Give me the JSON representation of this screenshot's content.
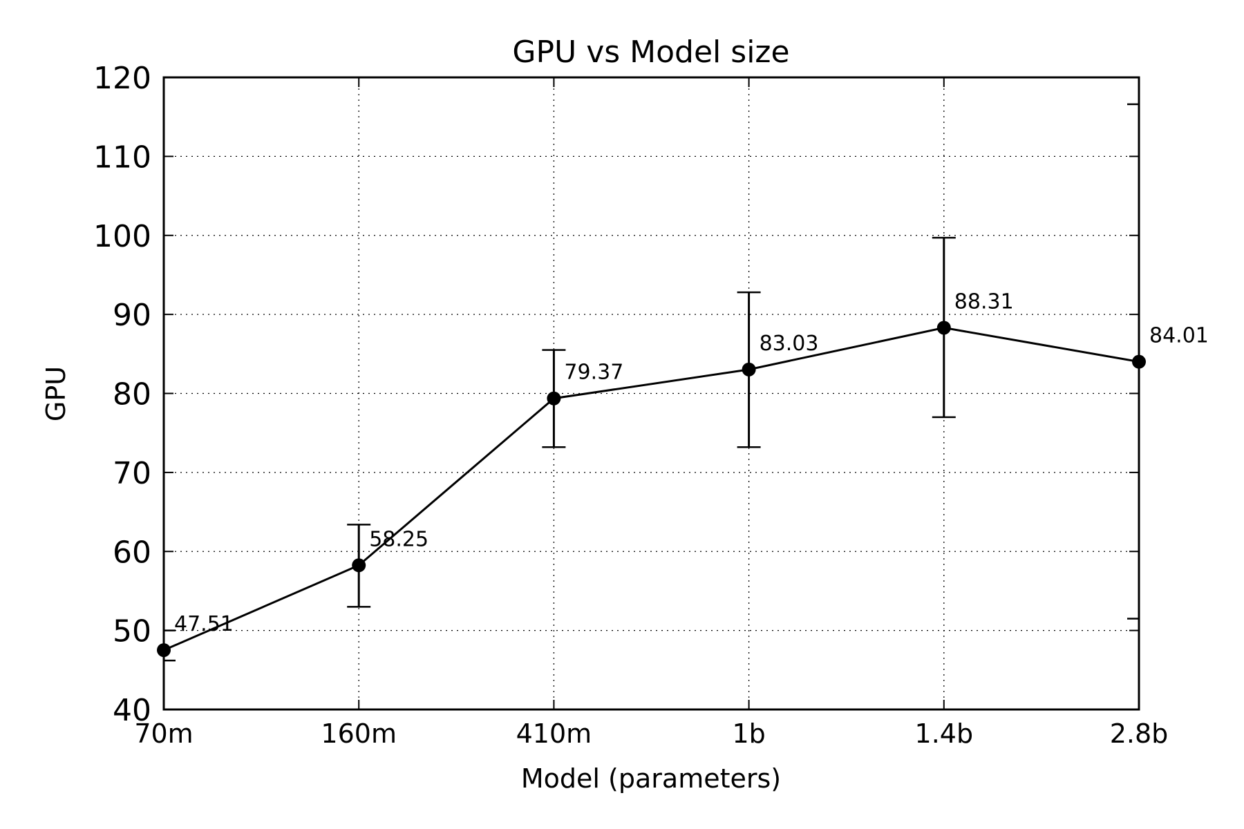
{
  "chart_data": {
    "type": "line",
    "title": "GPU vs Model size",
    "xlabel": "Model (parameters)",
    "ylabel": "GPU",
    "categories": [
      "70m",
      "160m",
      "410m",
      "1b",
      "1.4b",
      "2.8b"
    ],
    "series": [
      {
        "values": [
          47.51,
          58.25,
          79.37,
          83.03,
          88.31,
          84.01
        ],
        "error_low": [
          46.2,
          53.0,
          73.2,
          73.2,
          77.0,
          51.5
        ],
        "error_high": [
          50.0,
          63.4,
          85.5,
          92.8,
          99.7,
          116.6
        ],
        "labels": [
          "47.51",
          "58.25",
          "79.37",
          "83.03",
          "88.31",
          "84.01"
        ]
      }
    ],
    "ylim": [
      40,
      120
    ],
    "yticks": [
      40,
      50,
      60,
      70,
      80,
      90,
      100,
      110,
      120
    ],
    "grid": true,
    "line_color": "#000000"
  }
}
